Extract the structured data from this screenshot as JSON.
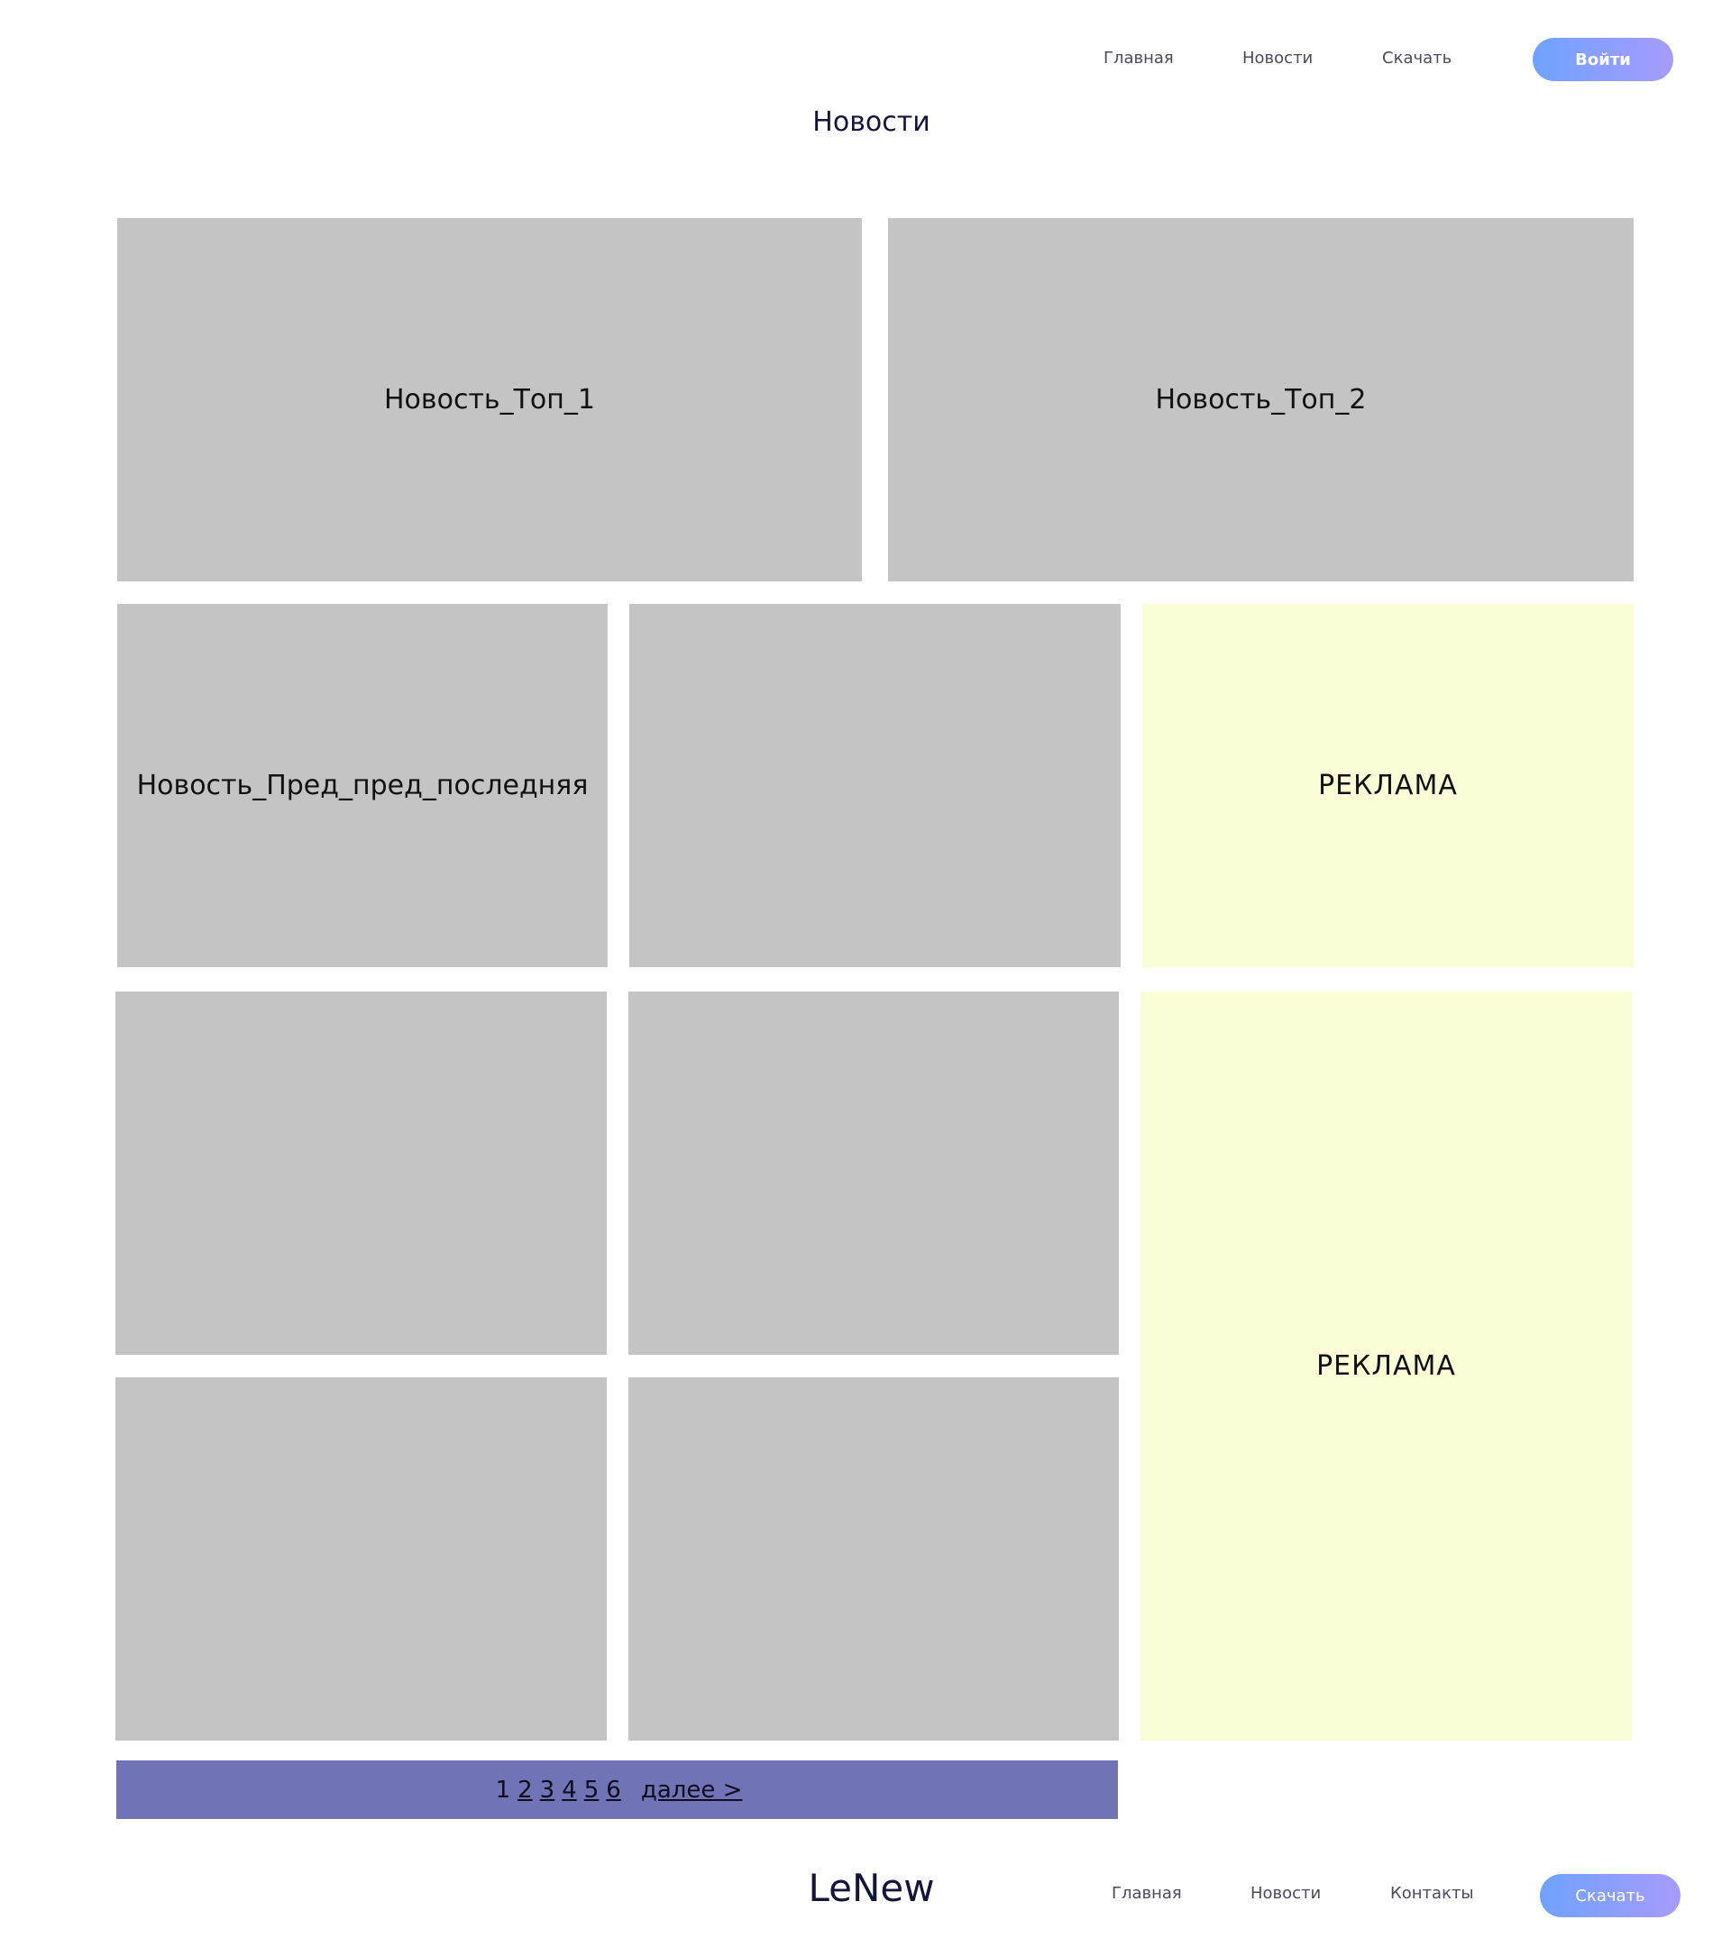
{
  "header": {
    "nav": [
      "Главная",
      "Новости",
      "Скачать"
    ],
    "login_label": "Войти"
  },
  "page_title": "Новости",
  "top_news": [
    "Новость_Топ_1",
    "Новость_Топ_2"
  ],
  "grid_news": [
    "Новость_Пред_пред_последняя",
    "",
    "",
    "",
    "",
    ""
  ],
  "ads": [
    "РЕКЛАМА",
    "РЕКЛАМА"
  ],
  "pagination": {
    "pages": [
      "1",
      "2",
      "3",
      "4",
      "5",
      "6"
    ],
    "current": "1",
    "next_label": "далее >"
  },
  "footer": {
    "logo": "LeNew",
    "nav": [
      "Главная",
      "Новости",
      "Контакты"
    ],
    "download_label": "Скачать"
  },
  "colors": {
    "card": "#c4c4c4",
    "ad": "#fbfdd6",
    "pager": "#7073b5",
    "button_gradient_start": "#6fa2ff",
    "button_gradient_end": "#a79bfc"
  }
}
